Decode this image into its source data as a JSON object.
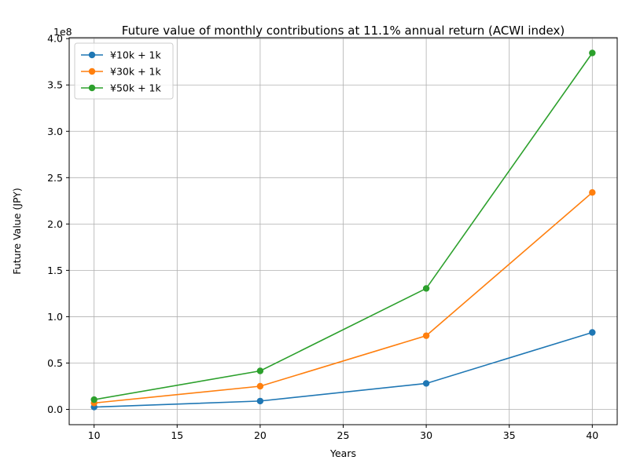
{
  "chart_data": {
    "type": "line",
    "title": "Future value of monthly contributions at 11.1% annual return (ACWI index)",
    "xlabel": "Years",
    "ylabel": "Future Value (JPY)",
    "y_offset_text": "1e8",
    "y_scale_factor": 100000000,
    "xlim": [
      8.5,
      41.5
    ],
    "ylim": [
      -16500000,
      401000000
    ],
    "x_ticks": [
      10,
      15,
      20,
      25,
      30,
      35,
      40
    ],
    "y_ticks": [
      0,
      50000000,
      100000000,
      150000000,
      200000000,
      250000000,
      300000000,
      350000000,
      400000000
    ],
    "y_tick_labels": [
      "0.0",
      "0.5",
      "1.0",
      "1.5",
      "2.0",
      "2.5",
      "3.0",
      "3.5",
      "4.0"
    ],
    "grid": true,
    "legend_position": "top-left",
    "x": [
      10,
      20,
      30,
      40
    ],
    "series": [
      {
        "name": "¥10k + 1k",
        "color": "#1f77b4",
        "values": [
          2500000,
          9000000,
          28000000,
          83000000
        ]
      },
      {
        "name": "¥30k + 1k",
        "color": "#ff7f0e",
        "values": [
          6900000,
          25000000,
          79500000,
          234000000
        ]
      },
      {
        "name": "¥50k + 1k",
        "color": "#2ca02c",
        "values": [
          10500000,
          41500000,
          130500000,
          384500000
        ]
      }
    ]
  }
}
